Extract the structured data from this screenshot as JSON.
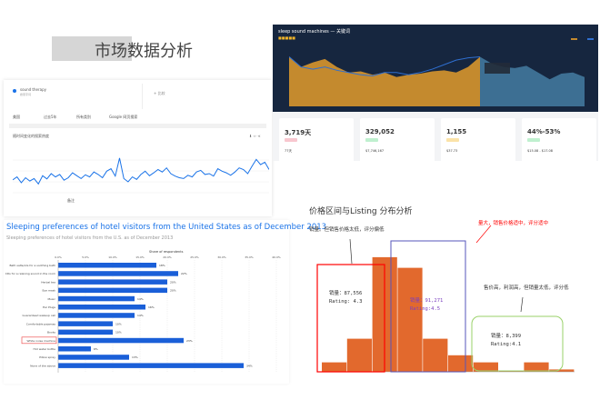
{
  "slide_title": "市场数据分析",
  "trends": {
    "term": "sound therapy",
    "term_sub": "搜索字词",
    "compare": "+ 比较",
    "filters": [
      "美国",
      "过去5年",
      "所有类别",
      "Google 网页搜索"
    ],
    "section_title": "随时间变化的搜索热度",
    "note": "备注",
    "color": "#1a73e8",
    "chart_data": {
      "type": "line",
      "values": [
        45,
        52,
        38,
        50,
        42,
        48,
        35,
        55,
        47,
        60,
        52,
        58,
        44,
        50,
        62,
        55,
        48,
        57,
        52,
        64,
        58,
        50,
        66,
        72,
        54,
        98,
        48,
        40,
        52,
        46,
        58,
        66,
        55,
        62,
        70,
        64,
        74,
        60,
        54,
        50,
        48,
        56,
        52,
        64,
        68,
        58,
        60,
        54,
        72,
        66,
        62,
        56,
        64,
        74,
        70,
        60,
        78,
        95,
        82,
        88,
        70
      ]
    }
  },
  "dashboard": {
    "title": "sleep sound machines — 关键词",
    "colors": {
      "bg": "#16263f",
      "orange": "#c48a2e",
      "blue": "#3d6f93",
      "line": "#2f6fd0"
    },
    "chart_data": {
      "type": "area",
      "left": [
        88,
        70,
        78,
        84,
        70,
        60,
        62,
        56,
        60,
        52,
        56,
        58,
        62,
        64,
        60,
        70,
        88
      ],
      "right": [
        88,
        76,
        70,
        68,
        72,
        60,
        48,
        58,
        60,
        52
      ],
      "line": [
        88,
        70,
        66,
        70,
        64,
        60,
        56,
        54,
        60,
        60,
        56,
        60,
        66,
        74,
        82,
        86,
        88
      ]
    },
    "cards": [
      {
        "value": "3,719天",
        "bottom": "77天",
        "tag_color": "#f8c7cf"
      },
      {
        "value": "329,052",
        "bottom": "$7,746,167",
        "tag_color": "#bff0cf"
      },
      {
        "value": "1,155",
        "bottom": "$37.73",
        "tag_color": "#fbe3a8"
      },
      {
        "value": "44%-53%",
        "bottom": "$15.08 - $17.08",
        "tag_color": "#bff0cf"
      }
    ]
  },
  "statista": {
    "title": "Sleeping preferences of hotel visitors from the United States as of December 2013",
    "subtitle": "Sleeping preferences of hotel visitors from the U.S. as of December 2013",
    "chart_data": {
      "type": "bar",
      "xlabel": "Share of respondents",
      "xlim": [
        0,
        40
      ],
      "ticks": [
        "0.0%",
        "5.0%",
        "10.0%",
        "15.0%",
        "20.0%",
        "25.0%",
        "30.0%",
        "35.0%",
        "40.0%"
      ],
      "categories": [
        "Bath salts/oils for a soothing bath",
        "CDs for a relaxing sound in the room",
        "Herbal tea",
        "Eye mask",
        "Music",
        "Ear Plugs",
        "Guaranteed wakeup call",
        "Comfortable pajamas",
        "Books",
        "White noise machine",
        "Hot water bottle",
        "Pillow spray",
        "None of the above"
      ],
      "values": [
        18,
        22,
        20,
        20,
        14,
        16,
        14,
        10,
        10,
        23,
        6,
        13,
        34
      ],
      "labels": [
        "18%",
        "22%",
        "20%",
        "20%",
        "14%",
        "16%",
        "14%",
        "10%",
        "10%",
        "23%",
        "6%",
        "13%",
        "34%"
      ],
      "color": "#1a5fd8",
      "highlight": "White noise machine"
    }
  },
  "hist": {
    "title": "价格区间与Listing 分布分析",
    "note_left": "销量。但销售价格太低，评分偏低",
    "note_mid": "量大，销售价格适中，评分适中",
    "note_right": "售价高，利润高，但销量太低，评分低",
    "box_left": [
      "销量：87,556",
      "Rating: 4.3"
    ],
    "box_mid": [
      "销量：91,271",
      "Rating:4.5"
    ],
    "box_right": [
      "销量：8,399",
      "Rating:4.1"
    ],
    "chart_data": {
      "type": "bar",
      "values": [
        8,
        28,
        97,
        88,
        28,
        14,
        8,
        0.5,
        8,
        2
      ],
      "color": "#e2692d"
    }
  }
}
